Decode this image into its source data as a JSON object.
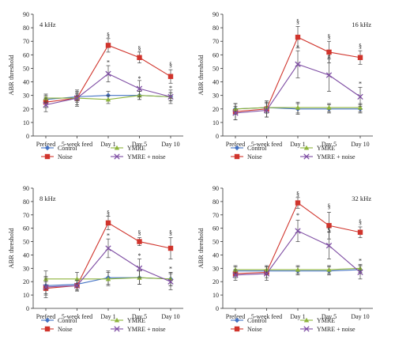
{
  "colors": {
    "control": "#4472C4",
    "noise": "#D0342C",
    "ymre": "#8DB43B",
    "ymre_noise": "#7E4DA3",
    "axis": "#333333"
  },
  "legend": [
    "Control",
    "Noise",
    "YMRE",
    "YMRE + noise"
  ],
  "chart_data": [
    {
      "type": "line",
      "title": "4 kHz",
      "ylabel": "ABR threshold",
      "categories": [
        "Prefeed",
        "5-week feed",
        "Day 1",
        "Day 5",
        "Day 10"
      ],
      "ylim": [
        0,
        90
      ],
      "yticks": [
        0,
        10,
        20,
        30,
        40,
        50,
        60,
        70,
        80,
        90
      ],
      "series": [
        {
          "name": "Control",
          "values": [
            27,
            29,
            30,
            30,
            29
          ],
          "err": [
            3,
            3,
            3,
            3,
            3
          ]
        },
        {
          "name": "Noise",
          "values": [
            25,
            28,
            67,
            58,
            44
          ],
          "err": [
            4,
            5,
            5,
            4,
            5
          ]
        },
        {
          "name": "YMRE",
          "values": [
            28,
            28,
            27,
            30,
            29
          ],
          "err": [
            3,
            3,
            3,
            3,
            3
          ]
        },
        {
          "name": "YMRE + noise",
          "values": [
            23,
            28,
            46,
            35,
            29
          ],
          "err": [
            5,
            6,
            6,
            6,
            5
          ]
        }
      ],
      "annotations": [
        {
          "x": "Day 1",
          "y": 73,
          "text": "§"
        },
        {
          "x": "Day 5",
          "y": 63,
          "text": "§"
        },
        {
          "x": "Day 10",
          "y": 51,
          "text": "§"
        },
        {
          "x": "Day 1",
          "y": 53,
          "text": "*"
        },
        {
          "x": "Day 5",
          "y": 41,
          "text": "*"
        },
        {
          "x": "Day 10",
          "y": 34,
          "text": "*"
        }
      ]
    },
    {
      "type": "line",
      "title": "16 kHz",
      "ylabel": "ABR threshold",
      "categories": [
        "Prefeed",
        "5-week feed",
        "Day 1",
        "Day 5",
        "Day 10"
      ],
      "ylim": [
        0,
        90
      ],
      "yticks": [
        0,
        10,
        20,
        30,
        40,
        50,
        60,
        70,
        80,
        90
      ],
      "series": [
        {
          "name": "Control",
          "values": [
            20,
            21,
            20,
            20,
            20
          ],
          "err": [
            4,
            4,
            4,
            3,
            3
          ]
        },
        {
          "name": "Noise",
          "values": [
            18,
            20,
            73,
            62,
            58
          ],
          "err": [
            6,
            6,
            8,
            8,
            5
          ]
        },
        {
          "name": "YMRE",
          "values": [
            20,
            21,
            21,
            21,
            21
          ],
          "err": [
            4,
            4,
            4,
            3,
            3
          ]
        },
        {
          "name": "YMRE + noise",
          "values": [
            17,
            19,
            53,
            45,
            29
          ],
          "err": [
            5,
            5,
            10,
            12,
            7
          ]
        }
      ],
      "annotations": [
        {
          "x": "Day 1",
          "y": 83,
          "text": "§"
        },
        {
          "x": "Day 5",
          "y": 72,
          "text": "§"
        },
        {
          "x": "Day 10",
          "y": 65,
          "text": "§"
        },
        {
          "x": "Day 1",
          "y": 64,
          "text": "*"
        },
        {
          "x": "Day 5",
          "y": 57,
          "text": "#"
        },
        {
          "x": "Day 10",
          "y": 37,
          "text": "*"
        }
      ]
    },
    {
      "type": "line",
      "title": "8 kHz",
      "ylabel": "ABR threshold",
      "categories": [
        "Prefeed",
        "5-week feed",
        "Day 1",
        "Day 5",
        "Day 10"
      ],
      "ylim": [
        0,
        90
      ],
      "yticks": [
        0,
        10,
        20,
        30,
        40,
        50,
        60,
        70,
        80,
        90
      ],
      "series": [
        {
          "name": "Control",
          "values": [
            17,
            18,
            23,
            23,
            22
          ],
          "err": [
            6,
            4,
            5,
            5,
            5
          ]
        },
        {
          "name": "Noise",
          "values": [
            15,
            17,
            64,
            50,
            45
          ],
          "err": [
            5,
            4,
            5,
            3,
            8
          ]
        },
        {
          "name": "YMRE",
          "values": [
            22,
            22,
            22,
            23,
            22
          ],
          "err": [
            6,
            5,
            5,
            5,
            5
          ]
        },
        {
          "name": "YMRE + noise",
          "values": [
            16,
            17,
            45,
            30,
            20
          ],
          "err": [
            8,
            4,
            7,
            7,
            6
          ]
        }
      ],
      "annotations": [
        {
          "x": "Day 1",
          "y": 70,
          "text": "§"
        },
        {
          "x": "Day 5",
          "y": 55,
          "text": "§"
        },
        {
          "x": "Day 10",
          "y": 55,
          "text": "§"
        },
        {
          "x": "Day 1",
          "y": 53,
          "text": "*"
        },
        {
          "x": "Day 5",
          "y": 38,
          "text": "*"
        },
        {
          "x": "Day 10",
          "y": 28,
          "text": "*"
        }
      ]
    },
    {
      "type": "line",
      "title": "32 kHz",
      "ylabel": "ABR threshold",
      "categories": [
        "Prefeed",
        "5-week feed",
        "Day 1",
        "Day 5",
        "Day 10"
      ],
      "ylim": [
        0,
        90
      ],
      "yticks": [
        0,
        10,
        20,
        30,
        40,
        50,
        60,
        70,
        80,
        90
      ],
      "series": [
        {
          "name": "Control",
          "values": [
            28,
            28,
            28,
            28,
            29
          ],
          "err": [
            3,
            3,
            3,
            3,
            3
          ]
        },
        {
          "name": "Noise",
          "values": [
            26,
            27,
            79,
            62,
            57
          ],
          "err": [
            3,
            4,
            4,
            10,
            4
          ]
        },
        {
          "name": "YMRE",
          "values": [
            29,
            29,
            29,
            29,
            30
          ],
          "err": [
            3,
            3,
            3,
            3,
            3
          ]
        },
        {
          "name": "YMRE + noise",
          "values": [
            25,
            26,
            58,
            47,
            27
          ],
          "err": [
            4,
            5,
            8,
            10,
            5
          ]
        }
      ],
      "annotations": [
        {
          "x": "Day 1",
          "y": 84,
          "text": "§"
        },
        {
          "x": "Day 5",
          "y": 75,
          "text": "§"
        },
        {
          "x": "Day 10",
          "y": 63,
          "text": "§"
        },
        {
          "x": "Day 1",
          "y": 68,
          "text": "*"
        },
        {
          "x": "Day 5",
          "y": 57,
          "text": "$"
        },
        {
          "x": "Day 10",
          "y": 34,
          "text": "*"
        }
      ]
    }
  ]
}
